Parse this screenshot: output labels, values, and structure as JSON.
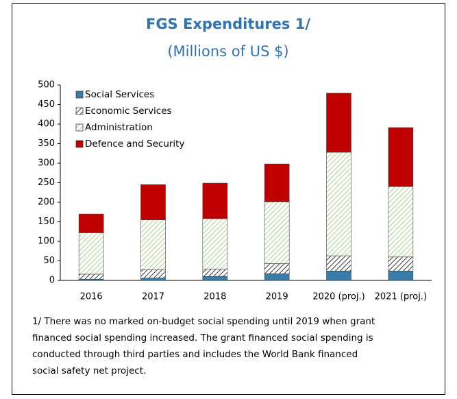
{
  "chart_data": {
    "type": "stacked_bar",
    "title": "FGS Expenditures 1/",
    "subtitle": "(Millions of US $)",
    "categories": [
      "2016",
      "2017",
      "2018",
      "2019",
      "2020 (proj.)",
      "2021 (proj.)"
    ],
    "series": [
      {
        "name": "Social Services",
        "color": "#3a7da8",
        "hatch": false,
        "values": [
          3,
          6,
          10,
          17,
          24,
          24
        ]
      },
      {
        "name": "Economic Services",
        "color": "#333333",
        "hatch": true,
        "values": [
          13,
          21,
          19,
          26,
          39,
          36
        ]
      },
      {
        "name": "Administration",
        "color": "#a9d18e",
        "hatch": true,
        "values": [
          106,
          128,
          129,
          158,
          265,
          180
        ]
      },
      {
        "name": "Defence and Security",
        "color": "#c00000",
        "hatch": false,
        "values": [
          48,
          90,
          91,
          97,
          151,
          151
        ]
      }
    ],
    "ylim": [
      0,
      500
    ],
    "yticks": [
      0,
      50,
      100,
      150,
      200,
      250,
      300,
      350,
      400,
      450,
      500
    ],
    "legend": "upper left",
    "footnote": [
      "1/ There was no marked on-budget social spending until 2019 when grant",
      "financed social spending increased. The grant financed social spending is",
      "conducted through third parties and includes the World Bank financed",
      "social safety net project."
    ]
  }
}
